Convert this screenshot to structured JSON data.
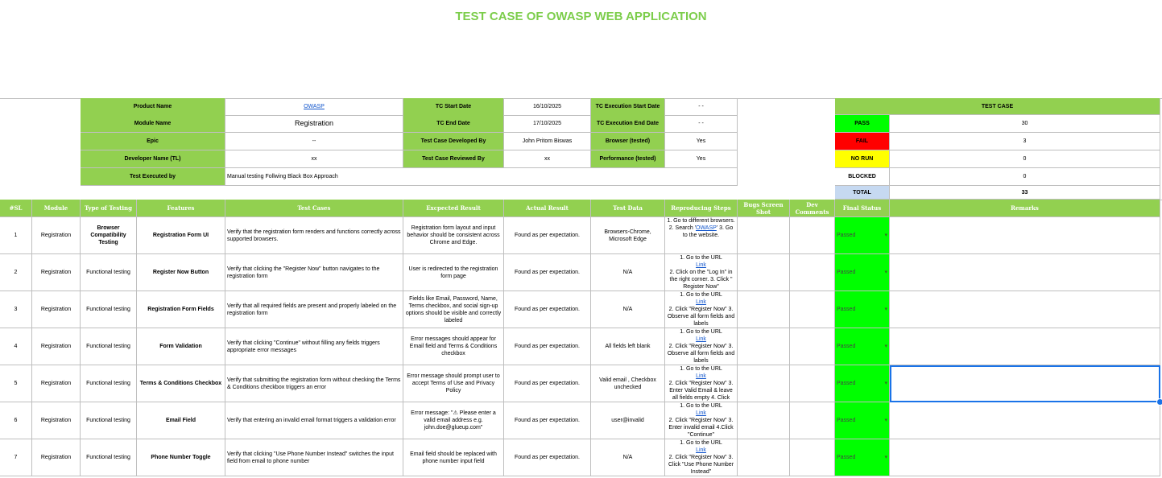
{
  "sheet_title": "TEST CASE OF OWASP WEB APPLICATION",
  "info": {
    "product_name_label": "Product Name",
    "product_name_value": "OWASP",
    "module_name_label": "Module Name",
    "module_name_value": "Registration",
    "epic_label": "Epic",
    "epic_value": "--",
    "developer_label": "Developer Name (TL)",
    "developer_value": "xx",
    "executed_by_label": "Test Executed by",
    "executed_by_value": "Manual testing Follwing Black Box Approach",
    "tc_start_label": "TC Start Date",
    "tc_start_value": "16/10/2025",
    "tc_end_label": "TC End Date",
    "tc_end_value": "17/10/2025",
    "developed_by_label": "Test Case Developed By",
    "developed_by_value": "John Pritom Biswas",
    "reviewed_by_label": "Test Case Reviewed By",
    "reviewed_by_value": "xx",
    "exec_start_label": "TC Execution Start Date",
    "exec_start_value": "- -",
    "exec_end_label": "TC Execution End Date",
    "exec_end_value": "- -",
    "browser_label": "Browser (tested)",
    "browser_value": "Yes",
    "performance_label": "Performance (tested)",
    "performance_value": "Yes"
  },
  "summary": {
    "header": "TEST CASE",
    "pass_label": "PASS",
    "pass_value": "30",
    "fail_label": "FAIL",
    "fail_value": "3",
    "norun_label": "NO RUN",
    "norun_value": "0",
    "blocked_label": "BLOCKED",
    "blocked_value": "0",
    "total_label": "TOTAL",
    "total_value": "33",
    "colors": {
      "pass": "#00ff00",
      "fail": "#ff0000",
      "norun": "#ffff00",
      "total": "#c6d9f1"
    }
  },
  "columns": {
    "sl": "#SL",
    "module": "Module",
    "type": "Type of Testing",
    "features": "Features",
    "test_cases": "Test Cases",
    "expected": "Excpected  Result",
    "actual": "Actual Result",
    "test_data": "Test Data",
    "steps": "Reproducing Steps",
    "bugs": "Bugs Screen Shot",
    "dev_comments": "Dev Comments",
    "final_status": "Final Status",
    "remarks": "Remarks"
  },
  "rows": [
    {
      "sl": "1",
      "module": "Registration",
      "type": "Browser Compatibility Testing",
      "feature": "Registration Form UI",
      "test_case": "Verify that the registration form renders and functions correctly across supported browsers.",
      "expected": "Registration form layout and input behavior should be consistent across Chrome and Edge.",
      "actual": "Found as per expectation.",
      "data": "Browsers-Chrome, Microsoft Edge",
      "steps_a": "1. Go to different browsers. 2. Search '",
      "steps_link": "OWASP",
      "steps_b": "' 3. Go to the website.",
      "status": "Passed"
    },
    {
      "sl": "2",
      "module": "Registration",
      "type": "Functional testing",
      "feature": "Register Now Button",
      "test_case": "Verify that clicking the \"Register Now\" button navigates to the registration form",
      "expected": "User is redirected to the registration form page",
      "actual": "Found as per expectation.",
      "data": "N/A",
      "steps_a": "1. Go to the URL",
      "steps_link": "Link",
      "steps_b": "2. Click on the \"Log In\" in the right corner. 3. Click \" Register Now\"",
      "status": "Passed"
    },
    {
      "sl": "3",
      "module": "Registration",
      "type": "Functional testing",
      "feature": "Registration Form Fields",
      "test_case": "Verify that all required fields are present and properly labeled on the registration form",
      "expected": "Fields like Email, Password, Name, Terms checkbox, and social sign-up options should be visible and correctly labeled",
      "actual": "Found as per expectation.",
      "data": "N/A",
      "steps_a": "1. Go to the URL",
      "steps_link": "Link",
      "steps_b": "2. Click \"Register Now\" 3. Observe all form fields and labels",
      "status": "Passed"
    },
    {
      "sl": "4",
      "module": "Registration",
      "type": "Functional testing",
      "feature": "Form Validation",
      "test_case": "Verify that clicking \"Continue\" without filling any fields triggers appropriate error messages",
      "expected": "Error messages should appear for Email field and Terms & Conditions checkbox",
      "actual": "Found as per expectation.",
      "data": "All fields left blank",
      "steps_a": "1. Go to the URL",
      "steps_link": "Link",
      "steps_b": "2. Click \"Register Now\" 3. Observe all form fields and labels",
      "status": "Passed"
    },
    {
      "sl": "5",
      "module": "Registration",
      "type": "Functional testing",
      "feature": "Terms & Conditions Checkbox",
      "test_case": "Verify that submitting the registration form without checking the Terms & Conditions checkbox triggers an error",
      "expected": "Error message should prompt user to accept Terms of Use and Privacy Policy",
      "actual": "Found as per expectation.",
      "data": "Valid email , Checkbox unchecked",
      "steps_a": "1. Go to the URL",
      "steps_link": "Link",
      "steps_b": "2. Click \"Register Now\" 3. Enter Valid Email & leave all fields empty 4. Click",
      "status": "Passed"
    },
    {
      "sl": "6",
      "module": "Registration",
      "type": "Functional testing",
      "feature": "Email Field",
      "test_case": "Verify that entering an invalid email format triggers a validation error",
      "expected": "Error message: \"⚠ Please enter a valid email address e.g. john.doe@glueup.com\"",
      "actual": "Found as per expectation.",
      "data": "user@invalid",
      "steps_a": "1. Go to the URL",
      "steps_link": "Link",
      "steps_b": "2. Click \"Register Now\" 3. Enter invalid email 4.Click \"Continue\"",
      "status": "Passed"
    },
    {
      "sl": "7",
      "module": "Registration",
      "type": "Functional testing",
      "feature": "Phone Number Toggle",
      "test_case": "Verify that clicking \"Use Phone Number Instead\" switches the input field from email to phone number",
      "expected": "Email field should be replaced with phone number input field",
      "actual": "Found as per expectation.",
      "data": "N/A",
      "steps_a": "1. Go to the URL",
      "steps_link": "Link",
      "steps_b": "2. Click \"Register Now\" 3. Click \"Use Phone Number Instead\"",
      "status": "Passed"
    }
  ]
}
